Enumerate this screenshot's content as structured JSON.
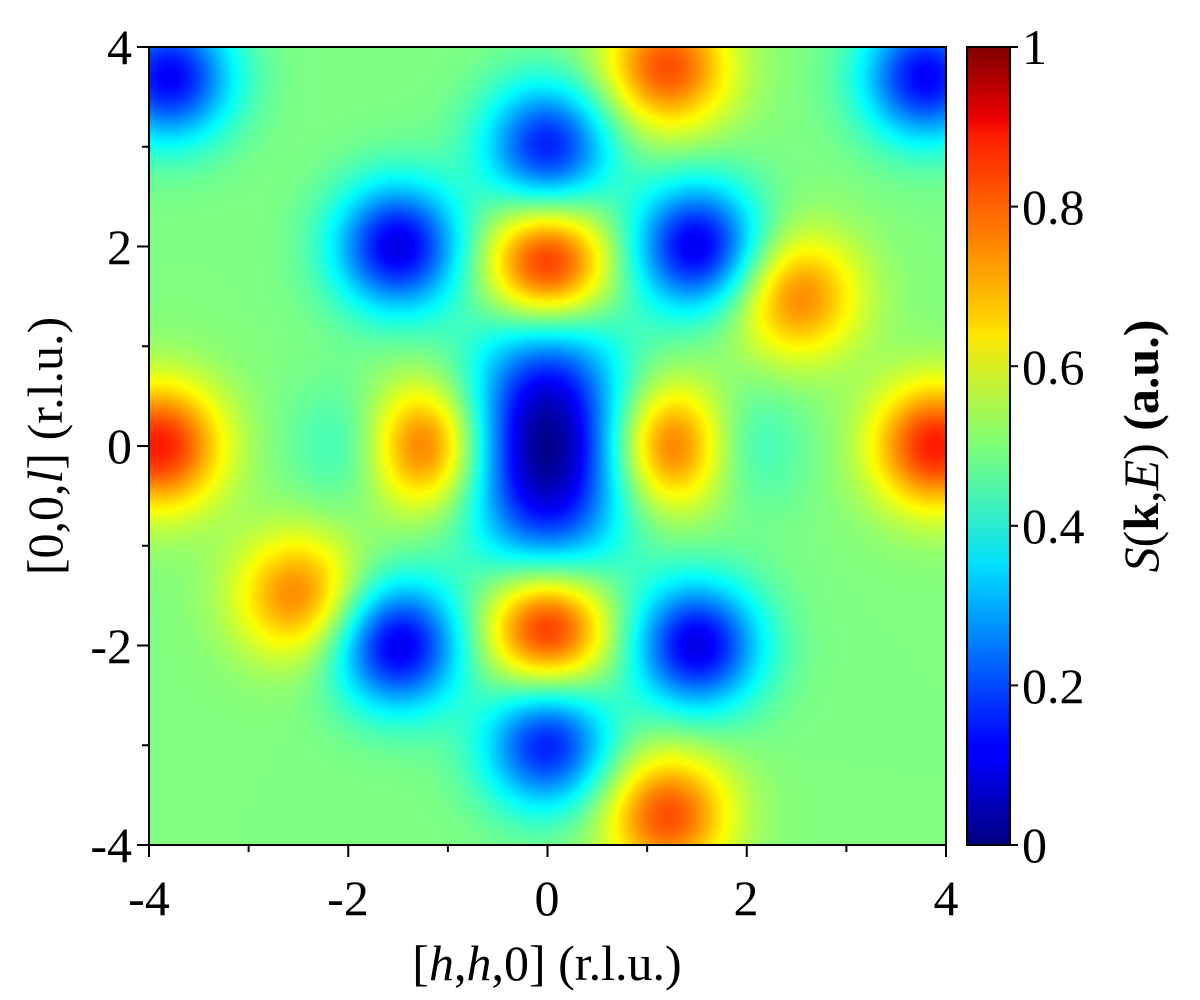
{
  "chart_data": {
    "type": "heatmap",
    "title": "",
    "xlabel": {
      "open": "[",
      "v1": "h",
      "sep1": ",",
      "v2": "h",
      "tail": ",0] (r.l.u.)"
    },
    "ylabel": {
      "open": "[0,0,",
      "v1": "l",
      "tail": "] (r.l.u.)"
    },
    "colorbar_label": {
      "v1": "S",
      "open": "(",
      "bold": "k",
      "sep": ",",
      "v2": "E",
      "close": ")",
      "tail": " (a.u.)"
    },
    "xlim": [
      -4,
      4
    ],
    "ylim": [
      -4,
      4
    ],
    "x_ticks": [
      "-4",
      "-2",
      "0",
      "2",
      "4"
    ],
    "y_ticks": [
      "-4",
      "-2",
      "0",
      "2",
      "4"
    ],
    "colorbar_range": [
      0,
      1
    ],
    "colorbar_ticks": [
      "0",
      "0.2",
      "0.4",
      "0.6",
      "0.8",
      "1"
    ],
    "colormap": "jet",
    "grid": false,
    "symmetry": "mirror in h and l",
    "intensity_features": [
      {
        "h": 0,
        "l": 0,
        "value": 0.0,
        "note": "central minimum (dark blue ellipse)"
      },
      {
        "h": 0,
        "l": 1.8,
        "value": 0.9,
        "note": "red maximum"
      },
      {
        "h": 0,
        "l": -1.8,
        "value": 0.9,
        "note": "red maximum"
      },
      {
        "h": 1.3,
        "l": 0,
        "value": 0.85,
        "note": "red maximum"
      },
      {
        "h": -1.3,
        "l": 0,
        "value": 0.85,
        "note": "red maximum"
      },
      {
        "h": 3.9,
        "l": 0,
        "value": 0.85,
        "note": "red maximum at edge"
      },
      {
        "h": -3.9,
        "l": 0,
        "value": 0.85,
        "note": "red maximum at edge"
      },
      {
        "h": 1.5,
        "l": 2.0,
        "value": 0.1,
        "note": "blue minimum"
      },
      {
        "h": -1.5,
        "l": 2.0,
        "value": 0.1,
        "note": "blue minimum"
      },
      {
        "h": 1.5,
        "l": -2.0,
        "value": 0.1,
        "note": "blue minimum"
      },
      {
        "h": -1.5,
        "l": -2.0,
        "value": 0.1,
        "note": "blue minimum"
      },
      {
        "h": 0,
        "l": 3.0,
        "value": 0.15,
        "note": "blue minimum"
      },
      {
        "h": 0,
        "l": -3.0,
        "value": 0.15,
        "note": "blue minimum"
      },
      {
        "h": 3.8,
        "l": 3.7,
        "value": 0.12,
        "note": "blue corner"
      },
      {
        "h": -3.8,
        "l": 3.7,
        "value": 0.12,
        "note": "blue corner"
      },
      {
        "h": 2.5,
        "l": 1.5,
        "value": 0.75,
        "note": "orange ridge"
      },
      {
        "h": -2.5,
        "l": -1.5,
        "value": 0.75,
        "note": "orange ridge"
      },
      {
        "h": 1.2,
        "l": 3.8,
        "value": 0.8,
        "note": "orange-red top"
      },
      {
        "h": 1.2,
        "l": -3.7,
        "value": 0.8,
        "note": "orange-red bottom"
      },
      {
        "h": 1.8,
        "l": 0,
        "value": 0.35,
        "note": "cyan spot"
      },
      {
        "h": -1.8,
        "l": 0,
        "value": 0.35,
        "note": "cyan spot"
      }
    ]
  }
}
